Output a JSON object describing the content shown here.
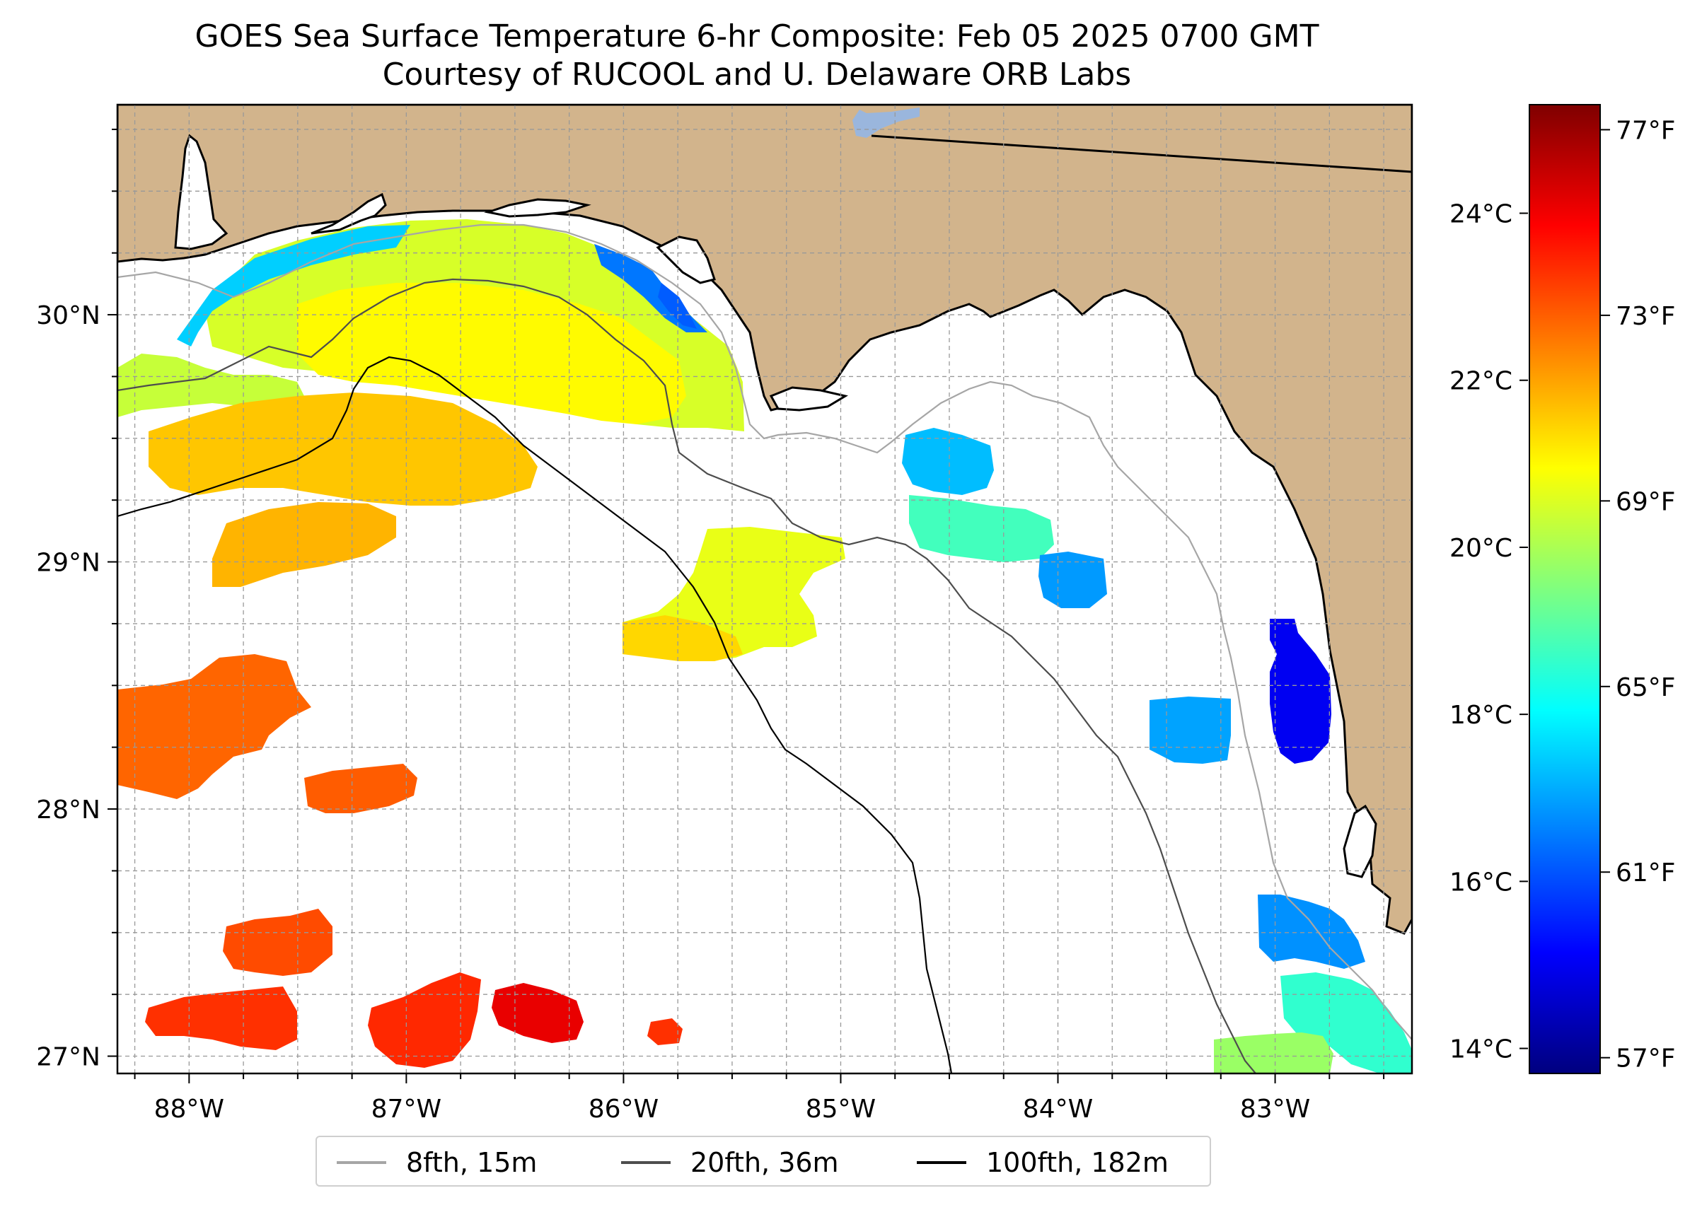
{
  "title": "GOES Sea Surface Temperature 6-hr Composite: Feb 05 2025 0700 GMT",
  "subtitle": "Courtesy of RUCOOL and U. Delaware ORB Labs",
  "map": {
    "extent_lon": [
      -88.33,
      -82.37
    ],
    "extent_lat": [
      26.93,
      30.85
    ],
    "land_color": "#d2b48c",
    "ocean_color": "#ffffff",
    "lon_ticks": [
      {
        "lon": -88,
        "label": "88°W"
      },
      {
        "lon": -87,
        "label": "87°W"
      },
      {
        "lon": -86,
        "label": "86°W"
      },
      {
        "lon": -85,
        "label": "85°W"
      },
      {
        "lon": -84,
        "label": "84°W"
      },
      {
        "lon": -83,
        "label": "83°W"
      }
    ],
    "lat_ticks": [
      {
        "lat": 30,
        "label": "30°N"
      },
      {
        "lat": 29,
        "label": "29°N"
      },
      {
        "lat": 28,
        "label": "28°N"
      },
      {
        "lat": 27,
        "label": "27°N"
      }
    ]
  },
  "colorbar": {
    "colormap": "jet",
    "celsius_range": [
      13.7,
      25.3
    ],
    "celsius_ticks": [
      {
        "value": 24,
        "label": "24°C"
      },
      {
        "value": 22,
        "label": "22°C"
      },
      {
        "value": 20,
        "label": "20°C"
      },
      {
        "value": 18,
        "label": "18°C"
      },
      {
        "value": 16,
        "label": "16°C"
      },
      {
        "value": 14,
        "label": "14°C"
      }
    ],
    "fahrenheit_ticks": [
      {
        "value": 77,
        "label": "77°F"
      },
      {
        "value": 73,
        "label": "73°F"
      },
      {
        "value": 69,
        "label": "69°F"
      },
      {
        "value": 65,
        "label": "65°F"
      },
      {
        "value": 61,
        "label": "61°F"
      },
      {
        "value": 57,
        "label": "57°F"
      }
    ]
  },
  "legend": {
    "items": [
      {
        "label": "8fth, 15m",
        "color": "#a6a6a6"
      },
      {
        "label": "20fth, 36m",
        "color": "#4d4d4d"
      },
      {
        "label": "100fth, 182m",
        "color": "#000000"
      }
    ]
  },
  "sst_patches": [
    {
      "region": "panhandle-coast",
      "temp_c": 20.5
    },
    {
      "region": "pensacola-west",
      "temp_c": 17.5
    },
    {
      "region": "destin-nearshore",
      "temp_c": 16.5
    },
    {
      "region": "panama-city",
      "temp_c": 16.2
    },
    {
      "region": "mobile-offshore",
      "temp_c": 20.3
    },
    {
      "region": "de-soto-canyon",
      "temp_c": 21.0
    },
    {
      "region": "north-mid-shelf",
      "temp_c": 21.6
    },
    {
      "region": "south-mid",
      "temp_c": 21.8
    },
    {
      "region": "central-east",
      "temp_c": 20.7
    },
    {
      "region": "central-south",
      "temp_c": 21.4
    },
    {
      "region": "big-bend-north",
      "temp_c": 17.3
    },
    {
      "region": "big-bend-mid",
      "temp_c": 18.8
    },
    {
      "region": "big-bend-south",
      "temp_c": 16.9
    },
    {
      "region": "cedar-key-offshore",
      "temp_c": 17.0
    },
    {
      "region": "crystal-river",
      "temp_c": 15.0
    },
    {
      "region": "tampa-bay-mouth",
      "temp_c": 16.8
    },
    {
      "region": "tampa-shelf-south",
      "temp_c": 18.6
    },
    {
      "region": "southeast-edge",
      "temp_c": 19.8
    },
    {
      "region": "west-orange-1",
      "temp_c": 22.7
    },
    {
      "region": "west-orange-2",
      "temp_c": 22.8
    },
    {
      "region": "west-south-1",
      "temp_c": 23.0
    },
    {
      "region": "west-south-2",
      "temp_c": 23.3
    },
    {
      "region": "south-mid-orange",
      "temp_c": 23.4
    },
    {
      "region": "south-red",
      "temp_c": 24.1
    },
    {
      "region": "south-small",
      "temp_c": 23.3
    }
  ]
}
